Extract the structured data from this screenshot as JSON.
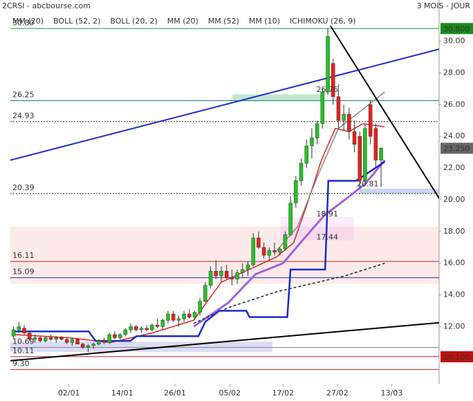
{
  "chart_data": {
    "type": "candlestick",
    "title": "2CRSI - abcbourse.com",
    "subtitle": "3 MOIS - JOUR",
    "legend": [
      {
        "name": "MM (20)",
        "color": "#e02020"
      },
      {
        "name": "BOLL (52, 2)",
        "color": "#333333"
      },
      {
        "name": "BOLL (20, 2)",
        "color": "#c890e8"
      },
      {
        "name": "MM (20)",
        "color": "#9040d0"
      },
      {
        "name": "MM (52)",
        "color": "#222222"
      },
      {
        "name": "MM (10)",
        "color": "#e02020"
      },
      {
        "name": "ICHIMOKU (26, 9)",
        "color": "#1a2ad0"
      }
    ],
    "up_color": "#22c422",
    "down_color": "#e62020",
    "open": [
      11.4,
      11.8,
      11.9,
      11.6,
      11.2,
      11.3,
      11.1,
      11.3,
      11.2,
      11.3,
      11.2,
      11.0,
      11.2,
      10.9,
      10.7,
      10.8,
      10.9,
      11.1,
      11.0,
      11.5,
      11.3,
      11.5,
      11.8,
      12.0,
      11.8,
      11.9,
      11.8,
      12.1,
      12.0,
      12.4,
      12.8,
      12.4,
      12.5,
      12.8,
      12.6,
      12.9,
      13.6,
      14.6,
      15.5,
      15.2,
      15.5,
      15.1,
      15.0,
      15.4,
      15.6,
      15.9,
      17.6,
      17.0,
      16.5,
      16.8,
      16.7,
      16.9,
      17.8,
      19.8,
      21.2,
      22.3,
      23.4,
      23.9,
      24.8,
      26.8,
      28.6,
      26.5,
      25.0,
      25.4,
      24.3,
      24.0,
      21.2,
      26.0,
      24.5,
      22.5
    ],
    "high": [
      12.0,
      12.3,
      12.1,
      11.7,
      11.5,
      11.4,
      11.4,
      11.5,
      11.4,
      11.4,
      11.3,
      11.3,
      11.3,
      11.0,
      10.9,
      11.0,
      11.2,
      11.3,
      11.6,
      11.7,
      11.6,
      11.9,
      12.2,
      12.1,
      12.0,
      12.1,
      12.2,
      12.5,
      12.5,
      13.0,
      13.0,
      12.7,
      13.0,
      13.1,
      13.0,
      13.8,
      14.8,
      15.8,
      16.2,
      15.8,
      15.9,
      15.6,
      15.6,
      16.0,
      16.1,
      17.9,
      18.0,
      17.3,
      17.0,
      17.3,
      17.0,
      18.0,
      20.2,
      21.5,
      22.6,
      23.8,
      24.5,
      25.0,
      27.0,
      30.8,
      28.9,
      27.3,
      26.0,
      25.8,
      25.0,
      24.3,
      24.8,
      26.3,
      24.8,
      23.3
    ],
    "low": [
      11.2,
      11.6,
      11.5,
      11.1,
      11.0,
      11.0,
      11.0,
      11.1,
      11.0,
      11.1,
      10.9,
      10.8,
      10.9,
      10.6,
      10.4,
      10.6,
      10.8,
      10.9,
      10.9,
      11.2,
      11.2,
      11.4,
      11.6,
      11.7,
      11.6,
      11.7,
      11.7,
      11.9,
      11.8,
      12.2,
      12.3,
      12.0,
      12.3,
      12.5,
      12.4,
      12.7,
      13.5,
      14.4,
      15.0,
      14.8,
      15.0,
      14.6,
      14.7,
      15.1,
      15.2,
      15.8,
      16.9,
      16.3,
      16.2,
      16.5,
      16.5,
      16.8,
      17.7,
      19.5,
      20.9,
      22.0,
      22.6,
      23.5,
      24.5,
      26.6,
      26.0,
      24.5,
      24.4,
      23.8,
      23.0,
      20.7,
      21.0,
      23.5,
      22.0,
      20.8
    ],
    "close": [
      11.8,
      12.0,
      11.6,
      11.2,
      11.3,
      11.1,
      11.3,
      11.2,
      11.3,
      11.2,
      11.0,
      11.2,
      10.9,
      10.7,
      10.8,
      10.9,
      11.1,
      11.0,
      11.5,
      11.3,
      11.5,
      11.8,
      12.0,
      11.8,
      11.9,
      11.8,
      12.1,
      12.0,
      12.4,
      12.8,
      12.4,
      12.5,
      12.8,
      12.6,
      12.9,
      13.6,
      14.6,
      15.5,
      15.2,
      15.5,
      15.1,
      15.0,
      15.4,
      15.6,
      15.9,
      17.6,
      17.0,
      16.5,
      16.8,
      16.7,
      16.9,
      17.8,
      19.8,
      21.2,
      22.3,
      23.4,
      23.9,
      24.8,
      26.8,
      30.3,
      26.5,
      25.0,
      25.4,
      24.3,
      23.5,
      21.2,
      24.5,
      24.0,
      22.5,
      23.25
    ],
    "lines": [
      {
        "color": "#e02020",
        "width": 1.5,
        "x": [
          0,
          10.4,
          18.2,
          26,
          33.8,
          39,
          44.2,
          49.4,
          52.6,
          55.2,
          57.8,
          60.4,
          63,
          65.6,
          69.7
        ],
        "values": [
          11.5,
          11.3,
          11.0,
          11.6,
          12.4,
          14.8,
          15.6,
          16.4,
          17.3,
          19.8,
          22.5,
          24.5,
          24.3,
          24.8,
          24.6
        ]
      },
      {
        "color": "#a060e0",
        "width": 3,
        "x": [
          33.8,
          40.3,
          45.4,
          50.6,
          54.4,
          58.3,
          62.2,
          66,
          69.7
        ],
        "values": [
          12.0,
          13.5,
          15.3,
          16.0,
          17.5,
          19.0,
          20.0,
          21.0,
          22.5
        ]
      },
      {
        "color": "#888888",
        "width": 1.5,
        "x": [
          49.4,
          53.3,
          57.1,
          61,
          64.8,
          69.7
        ],
        "values": [
          16.8,
          18.3,
          21.5,
          24.5,
          25.5,
          26.8
        ]
      },
      {
        "color": "#222222",
        "width": 1.5,
        "dash": true,
        "x": [
          33.8,
          40.3,
          49.4,
          57.1,
          62.2,
          69.7
        ],
        "values": [
          12.2,
          13.2,
          14.2,
          14.8,
          15.2,
          16.0
        ]
      },
      {
        "color": "#1a2ad0",
        "width": 2.5,
        "x": [
          0,
          14.1,
          15.4,
          21.9,
          23.1,
          34.7,
          36,
          38.6,
          43.7,
          44.3,
          51.4,
          52,
          58.5,
          59.1,
          64.3,
          69.7
        ],
        "values": [
          11.7,
          11.7,
          11.1,
          11.1,
          11.4,
          11.4,
          12.3,
          13.0,
          13.0,
          12.6,
          12.6,
          15.6,
          15.6,
          21.2,
          21.2,
          22.4
        ]
      }
    ],
    "trendlines": [
      {
        "color": "#000000",
        "x": [
          59.5,
          79.9
        ],
        "values": [
          30.97,
          20.1
        ]
      },
      {
        "color": "#1a2ad0",
        "x": [
          -0.6,
          79.9
        ],
        "values": [
          22.5,
          29.5
        ]
      },
      {
        "color": "#000000",
        "x": [
          -0.6,
          79.9
        ],
        "values": [
          9.85,
          12.25
        ]
      }
    ],
    "zones": [
      {
        "x": [
          -0.6,
          79.9
        ],
        "y": [
          14.7,
          18.3
        ],
        "color": "rgba(240,140,140,0.18)"
      },
      {
        "x": [
          41.1,
          57.8
        ],
        "y": [
          26.25,
          26.65
        ],
        "color": "rgba(80,190,120,0.35)"
      },
      {
        "x": [
          64.9,
          79.9
        ],
        "y": [
          20.39,
          20.7
        ],
        "color": "rgba(120,150,230,0.4)"
      },
      {
        "x": [
          50.1,
          63.9
        ],
        "y": [
          17.44,
          18.91
        ],
        "color": "rgba(230,120,230,0.15)"
      },
      {
        "x": [
          -0.6,
          48.6
        ],
        "y": [
          10.4,
          11.05
        ],
        "color": "rgba(140,140,230,0.3)"
      }
    ],
    "levels": [
      {
        "value": 30.8,
        "label": "30.80",
        "color": "#1a9a1a"
      },
      {
        "value": 26.25,
        "label": "26.25",
        "color": "#0a7a7a"
      },
      {
        "value": 24.93,
        "label": "24.93",
        "color": "#222222",
        "dash": true
      },
      {
        "value": 20.39,
        "label": "20.39",
        "color": "#222222",
        "dash": true
      },
      {
        "value": 16.11,
        "label": "16.11",
        "color": "#c02020"
      },
      {
        "value": 15.09,
        "label": "15.09",
        "color": "#2030c0"
      },
      {
        "value": 10.69,
        "label": "10.69",
        "color": "#888888"
      },
      {
        "value": 10.11,
        "label": "10.11",
        "color": "#c02020"
      },
      {
        "value": 9.3,
        "label": "9.30",
        "color": "#c02020"
      }
    ],
    "annotations": [
      {
        "value": 26.76,
        "label": "26.76",
        "x": 58.9
      },
      {
        "value": 20.81,
        "label": "20.81",
        "x": 66.5
      },
      {
        "value": 18.91,
        "label": "18.91",
        "x": 58.9
      },
      {
        "value": 17.44,
        "label": "17.44",
        "x": 58.9
      }
    ],
    "markers": [
      {
        "value": 30.8,
        "label": "30.800",
        "color": "#1a8a1a"
      },
      {
        "value": 23.25,
        "label": "23.250",
        "color": "#666666"
      },
      {
        "value": 10.1,
        "label": "10.100",
        "color": "#c01010"
      }
    ],
    "xlim": [
      -0.6,
      79.9
    ],
    "ylim": [
      8.4,
      32.6
    ],
    "yticks": [
      {
        "value": 12,
        "label": "12.00"
      },
      {
        "value": 14,
        "label": "14.00"
      },
      {
        "value": 16,
        "label": "16.00"
      },
      {
        "value": 18,
        "label": "18.00"
      },
      {
        "value": 20,
        "label": "20.00"
      },
      {
        "value": 22,
        "label": "22.00"
      },
      {
        "value": 24,
        "label": "24.00"
      },
      {
        "value": 26,
        "label": "26.00"
      },
      {
        "value": 28,
        "label": "28.00"
      },
      {
        "value": 30,
        "label": "30.00"
      }
    ],
    "xticks": [
      {
        "value": 10.4,
        "label": "02/01"
      },
      {
        "value": 20.4,
        "label": "14/01"
      },
      {
        "value": 30.3,
        "label": "26/01"
      },
      {
        "value": 40.6,
        "label": "05/02"
      },
      {
        "value": 50.6,
        "label": "17/02"
      },
      {
        "value": 60.8,
        "label": "27/02"
      },
      {
        "value": 71,
        "label": "13/03"
      }
    ]
  }
}
